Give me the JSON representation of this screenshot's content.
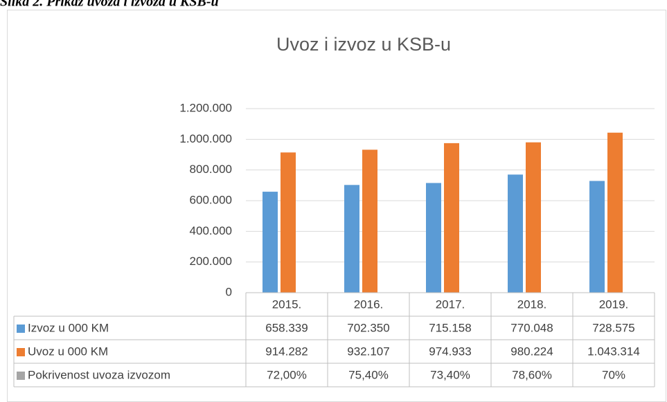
{
  "caption": "Slika 2. Prikaz uvoza i izvoza u KSB-u",
  "chart_data": {
    "type": "bar",
    "title": "Uvoz i izvoz u KSB-u",
    "categories": [
      "2015.",
      "2016.",
      "2017.",
      "2018.",
      "2019."
    ],
    "series": [
      {
        "name": "Izvoz u 000 KM",
        "color": "#5b9bd5",
        "values": [
          658339,
          702350,
          715158,
          770048,
          728575
        ],
        "value_labels": [
          "658.339",
          "702.350",
          "715.158",
          "770.048",
          "728.575"
        ]
      },
      {
        "name": "Uvoz u 000 KM",
        "color": "#ed7d31",
        "values": [
          914282,
          932107,
          974933,
          980224,
          1043314
        ],
        "value_labels": [
          "914.282",
          "932.107",
          "974.933",
          "980.224",
          "1.043.314"
        ]
      },
      {
        "name": "Pokrivenost uvoza izvozom",
        "color": "#a5a5a5",
        "values": [
          72.0,
          75.4,
          73.4,
          78.6,
          70
        ],
        "value_labels": [
          "72,00%",
          "75,40%",
          "73,40%",
          "78,60%",
          "70%"
        ]
      }
    ],
    "ylim": [
      0,
      1200000
    ],
    "yticks": [
      0,
      {
        "value": 200000,
        "label": "200.000"
      },
      {
        "value": 400000,
        "label": "400.000"
      },
      {
        "value": 600000,
        "label": "600.000"
      },
      {
        "value": 800000,
        "label": "800.000"
      },
      {
        "value": 1000000,
        "label": "1.000.000"
      },
      {
        "value": 1200000,
        "label": "1.200.000"
      }
    ],
    "grid": true
  }
}
